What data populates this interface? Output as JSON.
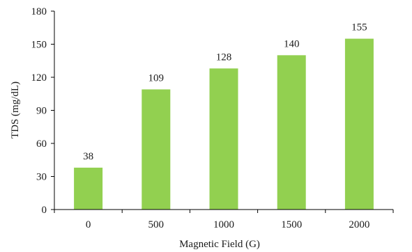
{
  "chart_data": {
    "type": "bar",
    "categories": [
      "0",
      "500",
      "1000",
      "1500",
      "2000"
    ],
    "values": [
      38,
      109,
      128,
      140,
      155
    ],
    "data_labels": [
      "38",
      "109",
      "128",
      "140",
      "155"
    ],
    "xlabel": "Magnetic  Field (G)",
    "ylabel": "TDS (mg/dL)",
    "ylim": [
      0,
      180
    ],
    "yticks": [
      0,
      30,
      60,
      90,
      120,
      150,
      180
    ],
    "ytick_labels": [
      "0",
      "30",
      "60",
      "90",
      "120",
      "150",
      "180"
    ],
    "grid": false,
    "legend": "none",
    "bar_color": "#92d050"
  }
}
